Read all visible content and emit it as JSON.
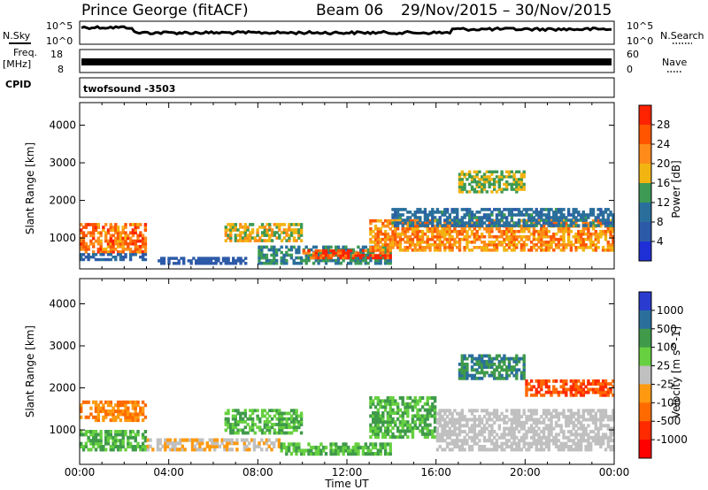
{
  "header": {
    "station": "Prince George (fitACF)",
    "beam": "Beam 06",
    "dates": "29/Nov/2015 – 30/Nov/2015"
  },
  "top_panels": {
    "nsky_label": "N.Sky",
    "nsky_ticks": [
      "10^5",
      "10^0"
    ],
    "nsearch_label": "N.Search",
    "nsearch_ticks": [
      "10^5",
      "10^0"
    ],
    "freq_label": "Freq.",
    "freq_unit": "[MHz]",
    "freq_ticks": [
      "18",
      "8"
    ],
    "nave_label": "Nave",
    "nave_ticks": [
      "60",
      "0"
    ],
    "cpid_label": "CPID",
    "cpid_value": "twofsound -3503"
  },
  "axes": {
    "ylabel": "Slant Range [km]",
    "yticks": [
      "4000",
      "3000",
      "2000",
      "1000"
    ],
    "xticks": [
      "00:00",
      "04:00",
      "08:00",
      "12:00",
      "16:00",
      "20:00",
      "00:00"
    ],
    "xlabel": "Time UT"
  },
  "colorbars": {
    "power": {
      "label": "Power [dB]",
      "ticks": [
        "28",
        "24",
        "20",
        "16",
        "12",
        "8",
        "4"
      ],
      "colors": [
        "#ff2200",
        "#ff5500",
        "#ff8c1a",
        "#f2b410",
        "#3c9a54",
        "#2a6f9c",
        "#2d5aa8",
        "#1f2fd6"
      ]
    },
    "velocity": {
      "label": "Velocity [m s^-1]",
      "ticks": [
        "1000",
        "500",
        "100",
        "25",
        "-25",
        "-100",
        "-500",
        "-1000"
      ],
      "colors": [
        "#2a3bd0",
        "#2a6f9c",
        "#3f9a4a",
        "#66d040",
        "#c0c0c0",
        "#ff9a10",
        "#ff6a00",
        "#ff2a00",
        "#ff0000"
      ]
    }
  },
  "chart_data": [
    {
      "type": "heatmap",
      "name": "power",
      "xlim": [
        0,
        24
      ],
      "ylim": [
        180,
        4600
      ],
      "bands": [
        {
          "t": [
            0.0,
            3.0
          ],
          "r": [
            600,
            1400
          ],
          "c": 24
        },
        {
          "t": [
            0.0,
            3.0
          ],
          "r": [
            400,
            600
          ],
          "c": 8
        },
        {
          "t": [
            3.5,
            7.5
          ],
          "r": [
            300,
            500
          ],
          "c": 6
        },
        {
          "t": [
            6.5,
            10.0
          ],
          "r": [
            900,
            1400
          ],
          "c": 18
        },
        {
          "t": [
            8.0,
            14.0
          ],
          "r": [
            300,
            800
          ],
          "c": 12
        },
        {
          "t": [
            10.0,
            14.0
          ],
          "r": [
            450,
            700
          ],
          "c": 28
        },
        {
          "t": [
            13.0,
            24.0
          ],
          "r": [
            650,
            1500
          ],
          "c": 22
        },
        {
          "t": [
            14.0,
            24.0
          ],
          "r": [
            1300,
            1800
          ],
          "c": 10
        },
        {
          "t": [
            17.0,
            20.0
          ],
          "r": [
            2200,
            2800
          ],
          "c": 16
        }
      ]
    },
    {
      "type": "heatmap",
      "name": "velocity",
      "xlim": [
        0,
        24
      ],
      "ylim": [
        180,
        4600
      ],
      "bands": [
        {
          "t": [
            0.0,
            3.0
          ],
          "r": [
            500,
            1000
          ],
          "c": 100
        },
        {
          "t": [
            0.0,
            3.0
          ],
          "r": [
            1200,
            1700
          ],
          "c": -100
        },
        {
          "t": [
            3.0,
            9.0
          ],
          "r": [
            500,
            800
          ],
          "c": -25
        },
        {
          "t": [
            6.5,
            10.0
          ],
          "r": [
            900,
            1500
          ],
          "c": 100
        },
        {
          "t": [
            9.0,
            14.0
          ],
          "r": [
            400,
            700
          ],
          "c": 100
        },
        {
          "t": [
            13.0,
            16.0
          ],
          "r": [
            800,
            1800
          ],
          "c": 100
        },
        {
          "t": [
            16.0,
            24.0
          ],
          "r": [
            500,
            1500
          ],
          "c": 0
        },
        {
          "t": [
            17.0,
            20.0
          ],
          "r": [
            2200,
            2800
          ],
          "c": 500
        },
        {
          "t": [
            20.0,
            24.0
          ],
          "r": [
            1800,
            2200
          ],
          "c": -500
        }
      ]
    }
  ]
}
